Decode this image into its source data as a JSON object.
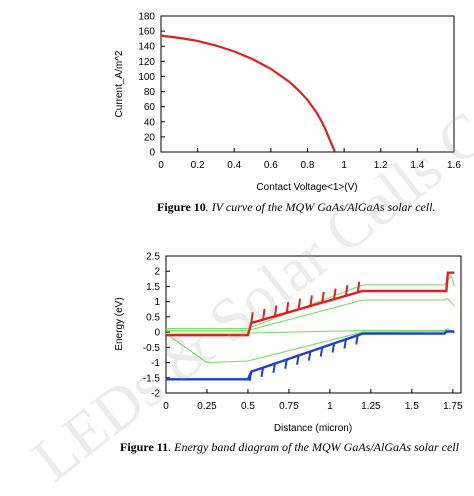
{
  "watermark": "LEDs & Solar Cells Course",
  "figure10": {
    "caption_label": "Figure 10",
    "caption_text": ". IV curve of the MQW GaAs/AlGaAs solar cell.",
    "chart_data": {
      "type": "line",
      "xlabel": "Contact Voltage<1>(V)",
      "ylabel": "Current_A/m^2",
      "xlim": [
        0,
        1.6
      ],
      "ylim": [
        0,
        180
      ],
      "xticks": [
        "0",
        "0.2",
        "0.4",
        "0.6",
        "0.8",
        "1",
        "1.2",
        "1.4",
        "1.6"
      ],
      "yticks": [
        "0",
        "20",
        "40",
        "60",
        "80",
        "100",
        "120",
        "140",
        "160",
        "180"
      ],
      "series": [
        {
          "color": "#e02020",
          "x": [
            0,
            0.1,
            0.2,
            0.3,
            0.4,
            0.5,
            0.6,
            0.7,
            0.75,
            0.8,
            0.85,
            0.88,
            0.9,
            0.92,
            0.94,
            0.95
          ],
          "y": [
            154,
            151,
            147,
            141,
            133,
            123,
            110,
            93,
            82,
            69,
            52,
            39,
            29,
            17,
            6,
            0
          ]
        }
      ]
    }
  },
  "figure11": {
    "caption_label": "Figure 11",
    "caption_text": ". Energy band diagram of the MQW GaAs/AlGaAs solar cell",
    "chart_data": {
      "type": "line",
      "xlabel": "Distance (micron)",
      "ylabel": "Energy (eV)",
      "xlim": [
        0,
        1.8
      ],
      "ylim": [
        -2,
        2.5
      ],
      "xticks": [
        "0",
        "0.25",
        "0.5",
        "0.75",
        "1",
        "1.25",
        "1.5",
        "1.75"
      ],
      "yticks": [
        "2.5",
        "2",
        "1.5",
        "1",
        "0.5",
        "0",
        "-0.5",
        "-1",
        "-1.5",
        "-2"
      ],
      "series": [
        {
          "color": "#e02020",
          "x": [
            0,
            0.5,
            0.52,
            1.2,
            1.71,
            1.72,
            1.76
          ],
          "y": [
            -0.1,
            -0.1,
            0.3,
            1.35,
            1.35,
            1.95,
            1.95
          ]
        },
        {
          "color": "#1f3fd0",
          "x": [
            0,
            0.5,
            0.52,
            1.2,
            1.7,
            1.71,
            1.76
          ],
          "y": [
            -1.55,
            -1.55,
            -1.3,
            -0.05,
            -0.05,
            0.02,
            0.02
          ]
        },
        {
          "color": "#7ddc6a",
          "x": [
            0,
            0.5,
            1.2,
            1.7,
            1.74,
            1.76
          ],
          "y": [
            0.12,
            0.12,
            1.55,
            1.55,
            1.85,
            1.5
          ]
        },
        {
          "color": "#7ddc6a",
          "x": [
            0,
            0.5,
            1.2,
            1.7,
            1.72,
            1.76
          ],
          "y": [
            0.05,
            0.05,
            1.05,
            1.05,
            1.1,
            0.85
          ]
        },
        {
          "color": "#7ddc6a",
          "x": [
            0,
            0.5,
            1.2,
            1.7,
            1.72,
            1.76
          ],
          "y": [
            -0.03,
            -0.03,
            0.05,
            0.05,
            0.12,
            -0.05
          ]
        },
        {
          "color": "#7ddc6a",
          "x": [
            0,
            0.25,
            0.5,
            1.2,
            1.7,
            1.76
          ],
          "y": [
            -0.05,
            -1.0,
            -0.95,
            0.0,
            0.02,
            0.02
          ]
        }
      ],
      "quantum_wells": {
        "x_start": 0.52,
        "x_end": 1.17,
        "count": 10,
        "conduction_depth": 0.35,
        "valence_depth": 0.3
      }
    }
  }
}
